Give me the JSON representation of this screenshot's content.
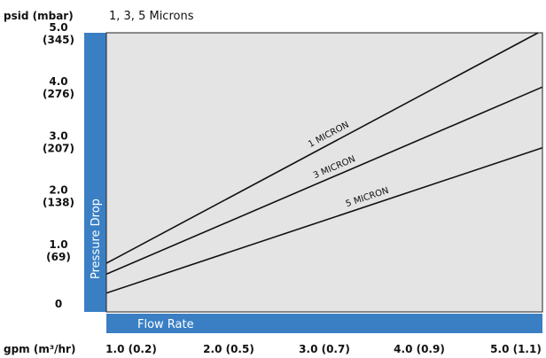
{
  "chart_data": {
    "type": "line",
    "y_unit_label": "psid (mbar)",
    "title": "1, 3, 5 Microns",
    "ylabel": "Pressure Drop",
    "xlabel": "Flow Rate",
    "x_unit_label": "gpm (m³/hr)",
    "x_range": [
      1.0,
      5.0
    ],
    "ylim": [
      0,
      5.0
    ],
    "grid": false,
    "y_ticks": [
      {
        "value": 5.0,
        "line1": "5.0",
        "line2": "(345)"
      },
      {
        "value": 4.0,
        "line1": "4.0",
        "line2": "(276)"
      },
      {
        "value": 3.0,
        "line1": "3.0",
        "line2": "(207)"
      },
      {
        "value": 2.0,
        "line1": "2.0",
        "line2": "(138)"
      },
      {
        "value": 1.0,
        "line1": "1.0",
        "line2": "(69)"
      },
      {
        "value": 0,
        "line1": "0",
        "line2": ""
      }
    ],
    "x_ticks": [
      {
        "value": 1.0,
        "label": "1.0 (0.2)"
      },
      {
        "value": 2.0,
        "label": "2.0 (0.5)"
      },
      {
        "value": 3.0,
        "label": "3.0 (0.7)"
      },
      {
        "value": 4.0,
        "label": "4.0 (0.9)"
      },
      {
        "value": 5.0,
        "label": "5.0 (1.1)"
      }
    ],
    "series": [
      {
        "name": "1 MICRON",
        "x": [
          1.0,
          4.96
        ],
        "y": [
          0.75,
          5.0
        ]
      },
      {
        "name": "3 MICRON",
        "x": [
          1.0,
          5.0
        ],
        "y": [
          0.55,
          4.0
        ]
      },
      {
        "name": "5 MICRON",
        "x": [
          1.0,
          5.0
        ],
        "y": [
          0.2,
          2.88
        ]
      }
    ],
    "colors": {
      "accent_band": "#3a7fc4",
      "plot_background": "#e4e4e4",
      "line": "#111111"
    }
  }
}
